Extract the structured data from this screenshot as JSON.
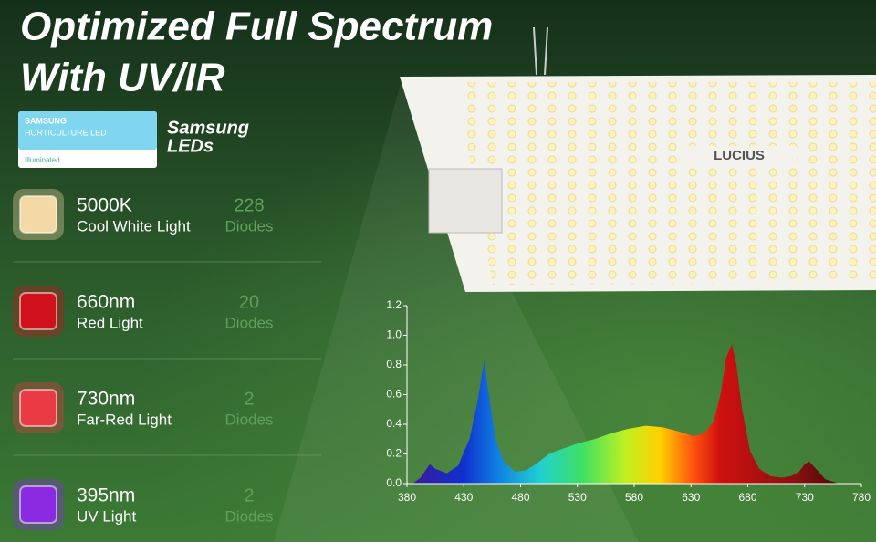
{
  "header": {
    "title_lines": [
      "Optimized Full Spectrum",
      "With UV/IR"
    ]
  },
  "badge": {
    "brand": "SAMSUNG",
    "product": "HORTICULTURE LED",
    "tag": "Illuminated",
    "caption_lines": [
      "Samsung",
      "LEDs"
    ]
  },
  "panel": {
    "logo": "LUCIUS"
  },
  "leds": [
    {
      "name": "5000K",
      "desc": "Cool White Light",
      "count": 228,
      "unit": "Diodes",
      "color": "#f2d9a6"
    },
    {
      "name": "660nm",
      "desc": "Red Light",
      "count": 20,
      "unit": "Diodes",
      "color": "#d0101a"
    },
    {
      "name": "730nm",
      "desc": "Far-Red Light",
      "count": 2,
      "unit": "Diodes",
      "color": "#ea3a44"
    },
    {
      "name": "395nm",
      "desc": "UV Light",
      "count": 2,
      "unit": "Diodes",
      "color": "#8a2be2"
    }
  ],
  "chart_data": {
    "type": "area",
    "x": [
      385,
      392,
      400,
      405,
      415,
      425,
      435,
      442,
      448,
      452,
      458,
      465,
      475,
      485,
      495,
      505,
      515,
      530,
      545,
      560,
      575,
      590,
      605,
      620,
      632,
      642,
      650,
      656,
      661,
      666,
      670,
      675,
      682,
      690,
      700,
      710,
      718,
      725,
      730,
      734,
      740,
      748,
      760
    ],
    "values": [
      0,
      0.04,
      0.13,
      0.1,
      0.07,
      0.12,
      0.3,
      0.55,
      0.83,
      0.6,
      0.3,
      0.15,
      0.08,
      0.09,
      0.14,
      0.2,
      0.23,
      0.27,
      0.3,
      0.34,
      0.37,
      0.39,
      0.38,
      0.35,
      0.32,
      0.34,
      0.42,
      0.6,
      0.85,
      0.94,
      0.8,
      0.5,
      0.22,
      0.1,
      0.05,
      0.04,
      0.05,
      0.08,
      0.13,
      0.15,
      0.1,
      0.03,
      0
    ],
    "xlim": [
      380,
      780
    ],
    "ylim": [
      0,
      1.2
    ],
    "xticks": [
      380,
      430,
      480,
      530,
      580,
      630,
      680,
      730,
      780
    ],
    "yticks": [
      {
        "value": 0,
        "label": "0.0"
      },
      0.2,
      0.4,
      0.6,
      0.8,
      {
        "value": 1,
        "label": "1.0"
      },
      1.2
    ]
  }
}
